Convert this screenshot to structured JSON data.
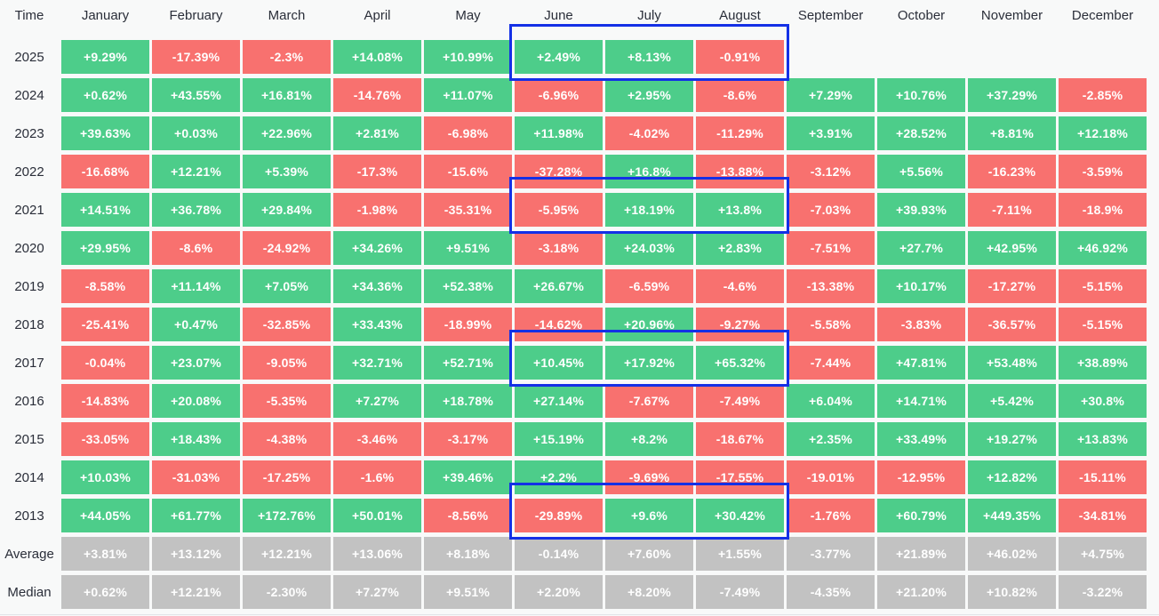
{
  "colors": {
    "positive": "#4dcd8a",
    "negative": "#f8716f",
    "summary": "#c2c2c2",
    "highlight_border": "#1430e6",
    "header_text": "#2a2e39",
    "cell_text": "#ffffff",
    "page_background": "#f8f9f9"
  },
  "header": {
    "time_label": "Time"
  },
  "chart_data": {
    "type": "heatmap",
    "title": "Monthly returns by year (%)",
    "columns": [
      "January",
      "February",
      "March",
      "April",
      "May",
      "June",
      "July",
      "August",
      "September",
      "October",
      "November",
      "December"
    ],
    "rows": [
      {
        "label": "2025",
        "kind": "year",
        "display": [
          "+9.29%",
          "-17.39%",
          "-2.3%",
          "+14.08%",
          "+10.99%",
          "+2.49%",
          "+8.13%",
          "-0.91%",
          "",
          "",
          "",
          ""
        ],
        "values": [
          9.29,
          -17.39,
          -2.3,
          14.08,
          10.99,
          2.49,
          8.13,
          -0.91,
          null,
          null,
          null,
          null
        ]
      },
      {
        "label": "2024",
        "kind": "year",
        "display": [
          "+0.62%",
          "+43.55%",
          "+16.81%",
          "-14.76%",
          "+11.07%",
          "-6.96%",
          "+2.95%",
          "-8.6%",
          "+7.29%",
          "+10.76%",
          "+37.29%",
          "-2.85%"
        ],
        "values": [
          0.62,
          43.55,
          16.81,
          -14.76,
          11.07,
          -6.96,
          2.95,
          -8.6,
          7.29,
          10.76,
          37.29,
          -2.85
        ]
      },
      {
        "label": "2023",
        "kind": "year",
        "display": [
          "+39.63%",
          "+0.03%",
          "+22.96%",
          "+2.81%",
          "-6.98%",
          "+11.98%",
          "-4.02%",
          "-11.29%",
          "+3.91%",
          "+28.52%",
          "+8.81%",
          "+12.18%"
        ],
        "values": [
          39.63,
          0.03,
          22.96,
          2.81,
          -6.98,
          11.98,
          -4.02,
          -11.29,
          3.91,
          28.52,
          8.81,
          12.18
        ]
      },
      {
        "label": "2022",
        "kind": "year",
        "display": [
          "-16.68%",
          "+12.21%",
          "+5.39%",
          "-17.3%",
          "-15.6%",
          "-37.28%",
          "+16.8%",
          "-13.88%",
          "-3.12%",
          "+5.56%",
          "-16.23%",
          "-3.59%"
        ],
        "values": [
          -16.68,
          12.21,
          5.39,
          -17.3,
          -15.6,
          -37.28,
          16.8,
          -13.88,
          -3.12,
          5.56,
          -16.23,
          -3.59
        ]
      },
      {
        "label": "2021",
        "kind": "year",
        "display": [
          "+14.51%",
          "+36.78%",
          "+29.84%",
          "-1.98%",
          "-35.31%",
          "-5.95%",
          "+18.19%",
          "+13.8%",
          "-7.03%",
          "+39.93%",
          "-7.11%",
          "-18.9%"
        ],
        "values": [
          14.51,
          36.78,
          29.84,
          -1.98,
          -35.31,
          -5.95,
          18.19,
          13.8,
          -7.03,
          39.93,
          -7.11,
          -18.9
        ]
      },
      {
        "label": "2020",
        "kind": "year",
        "display": [
          "+29.95%",
          "-8.6%",
          "-24.92%",
          "+34.26%",
          "+9.51%",
          "-3.18%",
          "+24.03%",
          "+2.83%",
          "-7.51%",
          "+27.7%",
          "+42.95%",
          "+46.92%"
        ],
        "values": [
          29.95,
          -8.6,
          -24.92,
          34.26,
          9.51,
          -3.18,
          24.03,
          2.83,
          -7.51,
          27.7,
          42.95,
          46.92
        ]
      },
      {
        "label": "2019",
        "kind": "year",
        "display": [
          "-8.58%",
          "+11.14%",
          "+7.05%",
          "+34.36%",
          "+52.38%",
          "+26.67%",
          "-6.59%",
          "-4.6%",
          "-13.38%",
          "+10.17%",
          "-17.27%",
          "-5.15%"
        ],
        "values": [
          -8.58,
          11.14,
          7.05,
          34.36,
          52.38,
          26.67,
          -6.59,
          -4.6,
          -13.38,
          10.17,
          -17.27,
          -5.15
        ]
      },
      {
        "label": "2018",
        "kind": "year",
        "display": [
          "-25.41%",
          "+0.47%",
          "-32.85%",
          "+33.43%",
          "-18.99%",
          "-14.62%",
          "+20.96%",
          "-9.27%",
          "-5.58%",
          "-3.83%",
          "-36.57%",
          "-5.15%"
        ],
        "values": [
          -25.41,
          0.47,
          -32.85,
          33.43,
          -18.99,
          -14.62,
          20.96,
          -9.27,
          -5.58,
          -3.83,
          -36.57,
          -5.15
        ]
      },
      {
        "label": "2017",
        "kind": "year",
        "display": [
          "-0.04%",
          "+23.07%",
          "-9.05%",
          "+32.71%",
          "+52.71%",
          "+10.45%",
          "+17.92%",
          "+65.32%",
          "-7.44%",
          "+47.81%",
          "+53.48%",
          "+38.89%"
        ],
        "values": [
          -0.04,
          23.07,
          -9.05,
          32.71,
          52.71,
          10.45,
          17.92,
          65.32,
          -7.44,
          47.81,
          53.48,
          38.89
        ]
      },
      {
        "label": "2016",
        "kind": "year",
        "display": [
          "-14.83%",
          "+20.08%",
          "-5.35%",
          "+7.27%",
          "+18.78%",
          "+27.14%",
          "-7.67%",
          "-7.49%",
          "+6.04%",
          "+14.71%",
          "+5.42%",
          "+30.8%"
        ],
        "values": [
          -14.83,
          20.08,
          -5.35,
          7.27,
          18.78,
          27.14,
          -7.67,
          -7.49,
          6.04,
          14.71,
          5.42,
          30.8
        ]
      },
      {
        "label": "2015",
        "kind": "year",
        "display": [
          "-33.05%",
          "+18.43%",
          "-4.38%",
          "-3.46%",
          "-3.17%",
          "+15.19%",
          "+8.2%",
          "-18.67%",
          "+2.35%",
          "+33.49%",
          "+19.27%",
          "+13.83%"
        ],
        "values": [
          -33.05,
          18.43,
          -4.38,
          -3.46,
          -3.17,
          15.19,
          8.2,
          -18.67,
          2.35,
          33.49,
          19.27,
          13.83
        ]
      },
      {
        "label": "2014",
        "kind": "year",
        "display": [
          "+10.03%",
          "-31.03%",
          "-17.25%",
          "-1.6%",
          "+39.46%",
          "+2.2%",
          "-9.69%",
          "-17.55%",
          "-19.01%",
          "-12.95%",
          "+12.82%",
          "-15.11%"
        ],
        "values": [
          10.03,
          -31.03,
          -17.25,
          -1.6,
          39.46,
          2.2,
          -9.69,
          -17.55,
          -19.01,
          -12.95,
          12.82,
          -15.11
        ]
      },
      {
        "label": "2013",
        "kind": "year",
        "display": [
          "+44.05%",
          "+61.77%",
          "+172.76%",
          "+50.01%",
          "-8.56%",
          "-29.89%",
          "+9.6%",
          "+30.42%",
          "-1.76%",
          "+60.79%",
          "+449.35%",
          "-34.81%"
        ],
        "values": [
          44.05,
          61.77,
          172.76,
          50.01,
          -8.56,
          -29.89,
          9.6,
          30.42,
          -1.76,
          60.79,
          449.35,
          -34.81
        ]
      },
      {
        "label": "Average",
        "kind": "summary",
        "display": [
          "+3.81%",
          "+13.12%",
          "+12.21%",
          "+13.06%",
          "+8.18%",
          "-0.14%",
          "+7.60%",
          "+1.55%",
          "-3.77%",
          "+21.89%",
          "+46.02%",
          "+4.75%"
        ],
        "values": [
          3.81,
          13.12,
          12.21,
          13.06,
          8.18,
          -0.14,
          7.6,
          1.55,
          -3.77,
          21.89,
          46.02,
          4.75
        ]
      },
      {
        "label": "Median",
        "kind": "summary",
        "display": [
          "+0.62%",
          "+12.21%",
          "-2.30%",
          "+7.27%",
          "+9.51%",
          "+2.20%",
          "+8.20%",
          "-7.49%",
          "-4.35%",
          "+21.20%",
          "+10.82%",
          "-3.22%"
        ],
        "values": [
          0.62,
          12.21,
          -2.3,
          7.27,
          9.51,
          2.2,
          8.2,
          -7.49,
          -4.35,
          21.2,
          10.82,
          -3.22
        ]
      }
    ],
    "highlight_boxes": {
      "columns": [
        "June",
        "July",
        "August"
      ],
      "row_labels": [
        "2025",
        "2021",
        "2017",
        "2013"
      ]
    },
    "legend_position": "none",
    "grid": false
  }
}
